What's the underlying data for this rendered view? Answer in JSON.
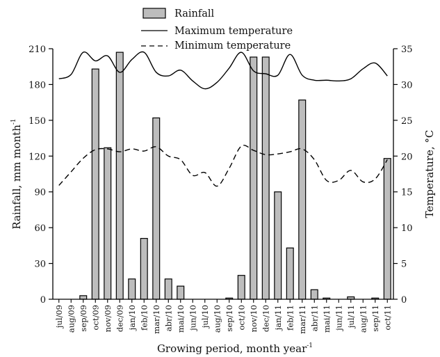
{
  "chart_data": {
    "type": "bar",
    "categories": [
      "jul/09",
      "aug/09",
      "sep/09",
      "oct/09",
      "nov/09",
      "dec/09",
      "jan/10",
      "feb/10",
      "mar/10",
      "abr/10",
      "mai/10",
      "jun/10",
      "jul/10",
      "aug/10",
      "sep/10",
      "oct/10",
      "nov/10",
      "dec/10",
      "jan/11",
      "feb/11",
      "mar/11",
      "abr/11",
      "mai/11",
      "jun/11",
      "jul/11",
      "aug/11",
      "sep/11",
      "oct/11"
    ],
    "series": [
      {
        "name": "Rainfall",
        "axis": "left",
        "kind": "bar",
        "color": "#bdbdbd",
        "values": [
          0,
          0,
          3,
          193,
          127,
          207,
          17,
          51,
          152,
          17,
          11,
          0,
          0,
          0,
          1,
          20,
          203,
          203,
          90,
          43,
          167,
          8,
          1,
          0,
          2,
          0,
          1,
          118
        ]
      },
      {
        "name": "Maximum temperature",
        "axis": "right",
        "kind": "line",
        "style": "solid",
        "color": "#000000",
        "values": [
          30.8,
          31.4,
          34.5,
          33.3,
          34.0,
          31.7,
          33.5,
          34.5,
          31.7,
          31.2,
          32.0,
          30.5,
          29.4,
          30.3,
          32.3,
          34.5,
          31.9,
          31.5,
          31.3,
          34.2,
          31.3,
          30.6,
          30.6,
          30.5,
          30.8,
          32.2,
          33.0,
          31.2
        ]
      },
      {
        "name": "Minimum temperature",
        "axis": "right",
        "kind": "line",
        "style": "dashed",
        "color": "#000000",
        "values": [
          15.9,
          17.8,
          19.7,
          20.9,
          21.0,
          20.6,
          21.0,
          20.7,
          21.3,
          20.0,
          19.5,
          17.3,
          17.7,
          15.8,
          18.3,
          21.4,
          20.8,
          20.2,
          20.3,
          20.6,
          21.0,
          19.5,
          16.6,
          16.6,
          18.0,
          16.4,
          16.8,
          19.5
        ]
      }
    ],
    "xlabel": "Growing period, month year",
    "xlabel_sup": "-1",
    "ylabel": "Rainfall, mm month",
    "ylabel_sup": "-1",
    "y2label": "Temperature, °C",
    "ylim": [
      0,
      210
    ],
    "y2lim": [
      0,
      35
    ],
    "yticks": [
      "0",
      "30",
      "60",
      "90",
      "120",
      "150",
      "180",
      "210"
    ],
    "y2ticks": [
      "0",
      "5",
      "10",
      "15",
      "20",
      "25",
      "30",
      "35"
    ],
    "grid": false,
    "legend_position": "top-center"
  }
}
